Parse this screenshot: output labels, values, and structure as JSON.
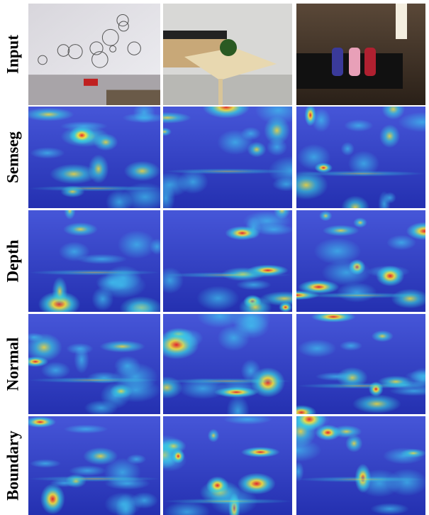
{
  "figure": {
    "rows": [
      {
        "label": "Input"
      },
      {
        "label": "Semseg"
      },
      {
        "label": "Depth"
      },
      {
        "label": "Normal"
      },
      {
        "label": "Boundary"
      }
    ]
  }
}
